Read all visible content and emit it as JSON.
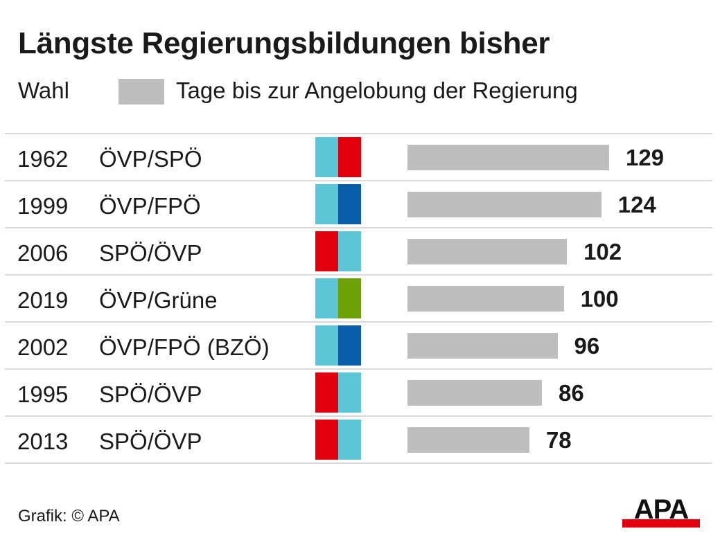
{
  "title": "Längste Regierungsbildungen bisher",
  "legend": {
    "column_label": "Wahl",
    "bar_label": "Tage bis zur Angelobung der Regierung",
    "bar_color": "#bebebe"
  },
  "party_colors": {
    "ÖVP": "#5bc6d6",
    "SPÖ": "#e2000f",
    "FPÖ": "#0a5ea9",
    "Grüne": "#6ea105",
    "BZÖ": "#0a5ea9"
  },
  "chart_data": {
    "type": "bar",
    "orientation": "horizontal",
    "categories": [
      "1962",
      "1999",
      "2006",
      "2019",
      "2002",
      "1995",
      "2013"
    ],
    "coalitions": [
      "ÖVP/SPÖ",
      "ÖVP/FPÖ",
      "SPÖ/ÖVP",
      "ÖVP/Grüne",
      "ÖVP/FPÖ (BZÖ)",
      "SPÖ/ÖVP",
      "SPÖ/ÖVP"
    ],
    "flag_colors": [
      [
        "#5bc6d6",
        "#e2000f"
      ],
      [
        "#5bc6d6",
        "#0a5ea9"
      ],
      [
        "#e2000f",
        "#5bc6d6"
      ],
      [
        "#5bc6d6",
        "#6ea105"
      ],
      [
        "#5bc6d6",
        "#0a5ea9"
      ],
      [
        "#e2000f",
        "#5bc6d6"
      ],
      [
        "#e2000f",
        "#5bc6d6"
      ]
    ],
    "values": [
      129,
      124,
      102,
      100,
      96,
      86,
      78
    ],
    "xlim": [
      0,
      129
    ],
    "grid": false
  },
  "footer": {
    "credit": "Grafik: © APA",
    "logo": "APA"
  }
}
